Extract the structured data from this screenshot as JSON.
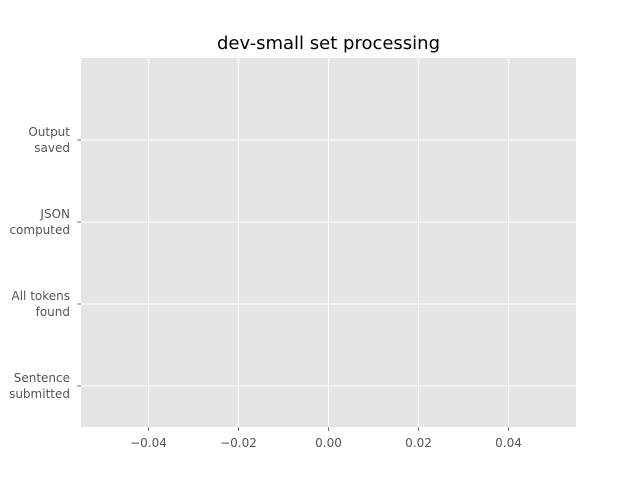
{
  "chart_data": {
    "type": "bar",
    "orientation": "horizontal",
    "title": "dev-small set processing",
    "xlabel": "",
    "ylabel": "",
    "categories": [
      [
        "Sentence",
        "submitted"
      ],
      [
        "All tokens",
        "found"
      ],
      [
        "JSON",
        "computed"
      ],
      [
        "Output",
        "saved"
      ]
    ],
    "values": [
      0,
      0,
      0,
      0
    ],
    "xlim": [
      -0.055,
      0.055
    ],
    "x_ticks": [
      -0.04,
      -0.02,
      0.0,
      0.02,
      0.04
    ],
    "x_tick_labels": [
      "−0.04",
      "−0.02",
      "0.00",
      "0.02",
      "0.04"
    ],
    "grid": true,
    "style": "ggplot",
    "colors": {
      "plot_background": "#e5e5e5",
      "grid": "#ffffff",
      "tick_text": "#555555",
      "title_text": "#000000"
    }
  }
}
